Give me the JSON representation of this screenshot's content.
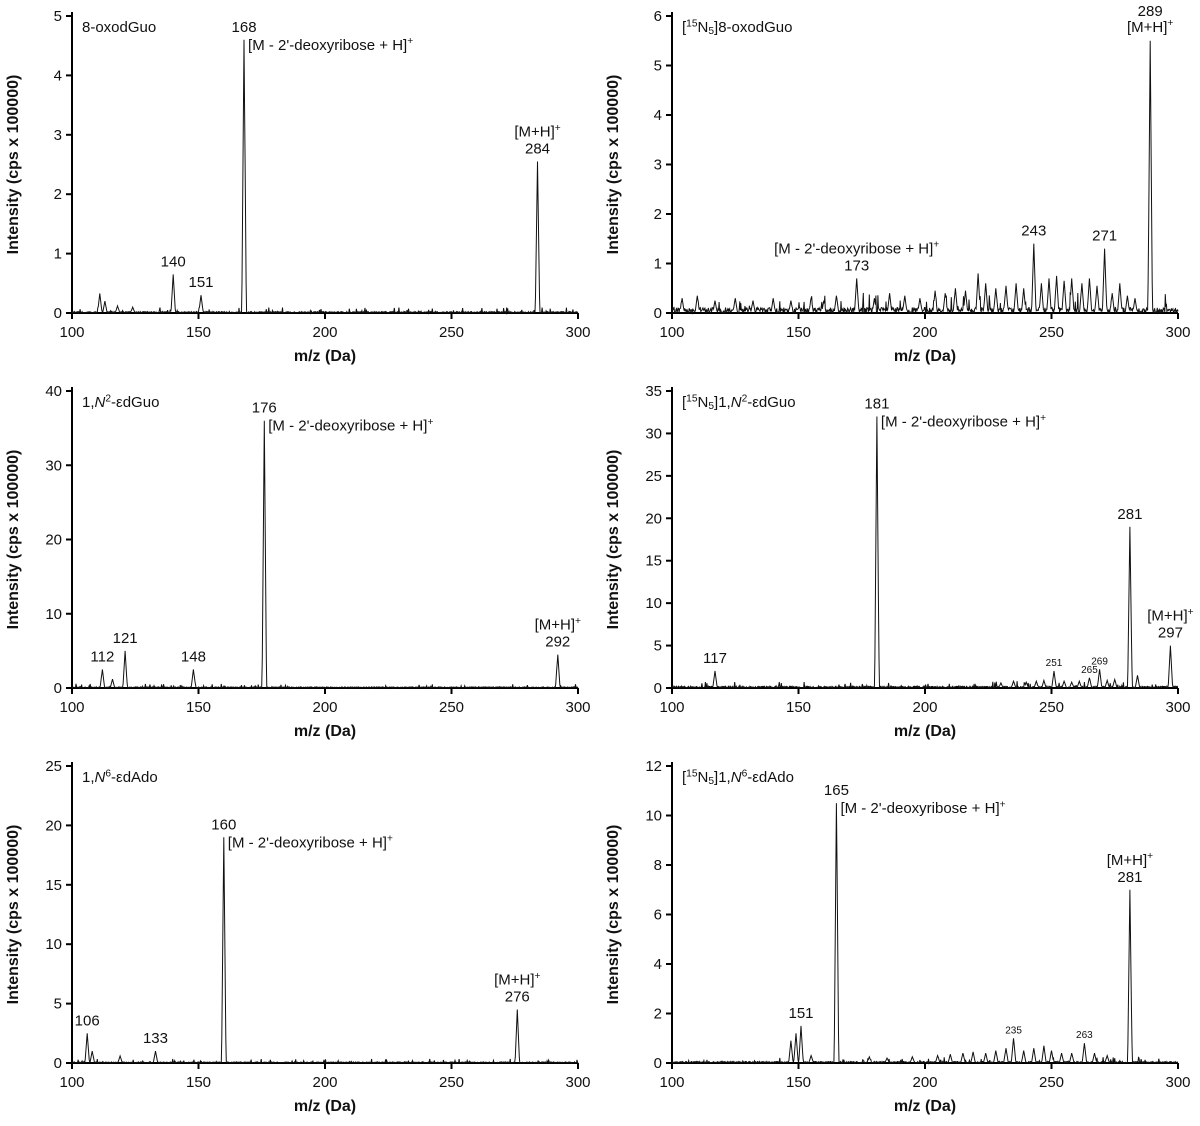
{
  "figure": {
    "xlabel": "m/z (Da)",
    "ylabel": "Intensity (cps x 100000)",
    "line_color": "#111111",
    "axis_color": "#000000",
    "background": "#ffffff"
  },
  "annotations": {
    "fragment": [
      [
        "[M - 2'-deoxyribose + H]",
        ""
      ],
      [
        "+",
        "sup"
      ]
    ],
    "protonated": [
      [
        "[M+H]",
        ""
      ],
      [
        "+",
        "sup"
      ]
    ]
  },
  "chart_data": [
    {
      "type": "line",
      "title": "8-oxodGuo",
      "title_segs": [
        [
          "8-oxodGuo",
          ""
        ]
      ],
      "xlabel": "m/z (Da)",
      "ylabel": "Intensity (cps x 100000)",
      "xlim": [
        100,
        300
      ],
      "ylim": [
        0,
        5
      ],
      "ytick_step": 1,
      "xticks": [
        100,
        150,
        200,
        250,
        300
      ],
      "noise": 0.035,
      "seed": 3,
      "peaks": [
        {
          "mz": 111,
          "i": 0.33
        },
        {
          "mz": 113,
          "i": 0.2
        },
        {
          "mz": 118,
          "i": 0.12
        },
        {
          "mz": 124,
          "i": 0.1
        },
        {
          "mz": 140,
          "i": 0.65,
          "label": "140"
        },
        {
          "mz": 151,
          "i": 0.3,
          "label": "151"
        },
        {
          "mz": 168,
          "i": 4.6,
          "label": "168",
          "ann": "fragment",
          "ann_pos": "right"
        },
        {
          "mz": 284,
          "i": 2.55,
          "label": "284",
          "ann": "protonated",
          "ann_pos": "above"
        }
      ]
    },
    {
      "type": "line",
      "title": "[15N5]8-oxodGuo",
      "title_segs": [
        [
          "[",
          ""
        ],
        [
          "15",
          "sup"
        ],
        [
          "N",
          ""
        ],
        [
          "5",
          "sub"
        ],
        [
          "]8-oxodGuo",
          ""
        ]
      ],
      "xlabel": "m/z (Da)",
      "ylabel": "Intensity (cps x 100000)",
      "xlim": [
        100,
        300
      ],
      "ylim": [
        0,
        6
      ],
      "ytick_step": 1,
      "xticks": [
        100,
        150,
        200,
        250,
        300
      ],
      "noise": 0.16,
      "seed": 7,
      "peaks": [
        {
          "mz": 104,
          "i": 0.3
        },
        {
          "mz": 110,
          "i": 0.35
        },
        {
          "mz": 117,
          "i": 0.25
        },
        {
          "mz": 125,
          "i": 0.3
        },
        {
          "mz": 132,
          "i": 0.25
        },
        {
          "mz": 140,
          "i": 0.3
        },
        {
          "mz": 147,
          "i": 0.25
        },
        {
          "mz": 155,
          "i": 0.3
        },
        {
          "mz": 160,
          "i": 0.25
        },
        {
          "mz": 165,
          "i": 0.35
        },
        {
          "mz": 173,
          "i": 0.7,
          "label": "173",
          "ann": "fragment",
          "ann_pos": "above"
        },
        {
          "mz": 180,
          "i": 0.3
        },
        {
          "mz": 186,
          "i": 0.4
        },
        {
          "mz": 192,
          "i": 0.35
        },
        {
          "mz": 198,
          "i": 0.3
        },
        {
          "mz": 204,
          "i": 0.45
        },
        {
          "mz": 208,
          "i": 0.4
        },
        {
          "mz": 212,
          "i": 0.5
        },
        {
          "mz": 216,
          "i": 0.45
        },
        {
          "mz": 221,
          "i": 0.8
        },
        {
          "mz": 224,
          "i": 0.6
        },
        {
          "mz": 228,
          "i": 0.5
        },
        {
          "mz": 232,
          "i": 0.55
        },
        {
          "mz": 236,
          "i": 0.6
        },
        {
          "mz": 239,
          "i": 0.5
        },
        {
          "mz": 243,
          "i": 1.4,
          "label": "243"
        },
        {
          "mz": 246,
          "i": 0.6
        },
        {
          "mz": 249,
          "i": 0.7
        },
        {
          "mz": 252,
          "i": 0.75
        },
        {
          "mz": 255,
          "i": 0.65
        },
        {
          "mz": 258,
          "i": 0.7
        },
        {
          "mz": 262,
          "i": 0.6
        },
        {
          "mz": 265,
          "i": 0.7
        },
        {
          "mz": 268,
          "i": 0.55
        },
        {
          "mz": 271,
          "i": 1.3,
          "label": "271"
        },
        {
          "mz": 274,
          "i": 0.4
        },
        {
          "mz": 277,
          "i": 0.6
        },
        {
          "mz": 280,
          "i": 0.35
        },
        {
          "mz": 283,
          "i": 0.3
        },
        {
          "mz": 289,
          "i": 5.5,
          "label": "289",
          "ann": "protonated",
          "ann_pos": "below"
        }
      ]
    },
    {
      "type": "line",
      "title": "1,N2-εdGuo",
      "title_segs": [
        [
          "1,",
          ""
        ],
        [
          "N",
          "i"
        ],
        [
          "2",
          "sup"
        ],
        [
          "-εdGuo",
          ""
        ]
      ],
      "xlabel": "m/z (Da)",
      "ylabel": "Intensity (cps x 100000)",
      "xlim": [
        100,
        300
      ],
      "ylim": [
        0,
        40
      ],
      "ytick_step": 10,
      "xticks": [
        100,
        150,
        200,
        250,
        300
      ],
      "noise": 0.22,
      "seed": 11,
      "peaks": [
        {
          "mz": 112,
          "i": 2.5,
          "label": "112"
        },
        {
          "mz": 116,
          "i": 1.2
        },
        {
          "mz": 121,
          "i": 5.0,
          "label": "121"
        },
        {
          "mz": 148,
          "i": 2.5,
          "label": "148"
        },
        {
          "mz": 176,
          "i": 36,
          "label": "176",
          "ann": "fragment",
          "ann_pos": "right"
        },
        {
          "mz": 292,
          "i": 4.5,
          "label": "292",
          "ann": "protonated",
          "ann_pos": "above"
        }
      ]
    },
    {
      "type": "line",
      "title": "[15N5]1,N2-εdGuo",
      "title_segs": [
        [
          "[",
          ""
        ],
        [
          "15",
          "sup"
        ],
        [
          "N",
          ""
        ],
        [
          "5",
          "sub"
        ],
        [
          "]1,",
          ""
        ],
        [
          "N",
          "i"
        ],
        [
          "2",
          "sup"
        ],
        [
          "-εdGuo",
          ""
        ]
      ],
      "xlabel": "m/z (Da)",
      "ylabel": "Intensity (cps x 100000)",
      "xlim": [
        100,
        300
      ],
      "ylim": [
        0,
        35
      ],
      "ytick_step": 5,
      "xticks": [
        100,
        150,
        200,
        250,
        300
      ],
      "noise": 0.3,
      "seed": 13,
      "peaks": [
        {
          "mz": 117,
          "i": 2.0,
          "label": "117"
        },
        {
          "mz": 181,
          "i": 32,
          "label": "181",
          "ann": "fragment",
          "ann_pos": "right"
        },
        {
          "mz": 230,
          "i": 0.6
        },
        {
          "mz": 235,
          "i": 0.8
        },
        {
          "mz": 240,
          "i": 0.7
        },
        {
          "mz": 244,
          "i": 0.8
        },
        {
          "mz": 247,
          "i": 0.9
        },
        {
          "mz": 251,
          "i": 2.0,
          "label": "251",
          "small": true
        },
        {
          "mz": 255,
          "i": 0.8
        },
        {
          "mz": 258,
          "i": 0.7
        },
        {
          "mz": 261,
          "i": 0.8
        },
        {
          "mz": 265,
          "i": 1.2,
          "label": "265",
          "small": true
        },
        {
          "mz": 269,
          "i": 2.2,
          "label": "269",
          "small": true
        },
        {
          "mz": 272,
          "i": 0.9
        },
        {
          "mz": 275,
          "i": 1.0
        },
        {
          "mz": 281,
          "i": 19,
          "label": "281"
        },
        {
          "mz": 284,
          "i": 1.5
        },
        {
          "mz": 297,
          "i": 5.0,
          "label": "297",
          "ann": "protonated",
          "ann_pos": "above"
        }
      ]
    },
    {
      "type": "line",
      "title": "1,N6-εdAdo",
      "title_segs": [
        [
          "1,",
          ""
        ],
        [
          "N",
          "i"
        ],
        [
          "6",
          "sup"
        ],
        [
          "-εdAdo",
          ""
        ]
      ],
      "xlabel": "m/z (Da)",
      "ylabel": "Intensity (cps x 100000)",
      "xlim": [
        100,
        300
      ],
      "ylim": [
        0,
        25
      ],
      "ytick_step": 5,
      "xticks": [
        100,
        150,
        200,
        250,
        300
      ],
      "noise": 0.13,
      "seed": 17,
      "peaks": [
        {
          "mz": 106,
          "i": 2.5,
          "label": "106"
        },
        {
          "mz": 108,
          "i": 1.0
        },
        {
          "mz": 119,
          "i": 0.6
        },
        {
          "mz": 133,
          "i": 1.0,
          "label": "133"
        },
        {
          "mz": 160,
          "i": 19,
          "label": "160",
          "ann": "fragment",
          "ann_pos": "right"
        },
        {
          "mz": 276,
          "i": 4.5,
          "label": "276",
          "ann": "protonated",
          "ann_pos": "above"
        }
      ]
    },
    {
      "type": "line",
      "title": "[15N5]1,N6-εdAdo",
      "title_segs": [
        [
          "[",
          ""
        ],
        [
          "15",
          "sup"
        ],
        [
          "N",
          ""
        ],
        [
          "5",
          "sub"
        ],
        [
          "]1,",
          ""
        ],
        [
          "N",
          "i"
        ],
        [
          "6",
          "sup"
        ],
        [
          "-εdAdo",
          ""
        ]
      ],
      "xlabel": "m/z (Da)",
      "ylabel": "Intensity (cps x 100000)",
      "xlim": [
        100,
        300
      ],
      "ylim": [
        0,
        12
      ],
      "ytick_step": 2,
      "xticks": [
        100,
        150,
        200,
        250,
        300
      ],
      "noise": 0.09,
      "seed": 19,
      "peaks": [
        {
          "mz": 147,
          "i": 0.9
        },
        {
          "mz": 149,
          "i": 1.2
        },
        {
          "mz": 151,
          "i": 1.5,
          "label": "151"
        },
        {
          "mz": 155,
          "i": 0.3
        },
        {
          "mz": 165,
          "i": 10.5,
          "label": "165",
          "ann": "fragment",
          "ann_pos": "right"
        },
        {
          "mz": 178,
          "i": 0.25
        },
        {
          "mz": 185,
          "i": 0.2
        },
        {
          "mz": 195,
          "i": 0.25
        },
        {
          "mz": 205,
          "i": 0.3
        },
        {
          "mz": 210,
          "i": 0.35
        },
        {
          "mz": 215,
          "i": 0.4
        },
        {
          "mz": 219,
          "i": 0.45
        },
        {
          "mz": 224,
          "i": 0.4
        },
        {
          "mz": 228,
          "i": 0.5
        },
        {
          "mz": 232,
          "i": 0.6
        },
        {
          "mz": 235,
          "i": 1.0,
          "label": "235",
          "small": true
        },
        {
          "mz": 239,
          "i": 0.5
        },
        {
          "mz": 243,
          "i": 0.6
        },
        {
          "mz": 247,
          "i": 0.7
        },
        {
          "mz": 250,
          "i": 0.5
        },
        {
          "mz": 254,
          "i": 0.4
        },
        {
          "mz": 258,
          "i": 0.4
        },
        {
          "mz": 263,
          "i": 0.8,
          "label": "263",
          "small": true
        },
        {
          "mz": 267,
          "i": 0.4
        },
        {
          "mz": 272,
          "i": 0.3
        },
        {
          "mz": 281,
          "i": 7.0,
          "label": "281",
          "ann": "protonated",
          "ann_pos": "above"
        }
      ]
    }
  ]
}
